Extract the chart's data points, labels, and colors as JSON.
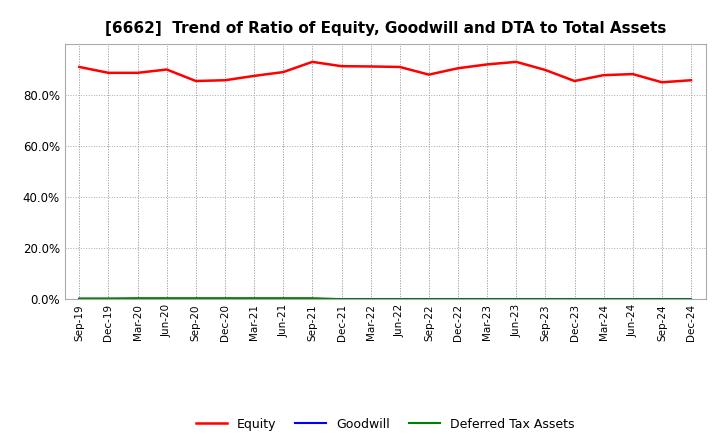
{
  "title": "[6662]  Trend of Ratio of Equity, Goodwill and DTA to Total Assets",
  "labels": [
    "Sep-19",
    "Dec-19",
    "Mar-20",
    "Jun-20",
    "Sep-20",
    "Dec-20",
    "Mar-21",
    "Jun-21",
    "Sep-21",
    "Dec-21",
    "Mar-22",
    "Jun-22",
    "Sep-22",
    "Dec-22",
    "Mar-23",
    "Jun-23",
    "Sep-23",
    "Dec-23",
    "Mar-24",
    "Jun-24",
    "Sep-24",
    "Dec-24"
  ],
  "equity": [
    0.91,
    0.887,
    0.887,
    0.9,
    0.855,
    0.858,
    0.875,
    0.89,
    0.93,
    0.913,
    0.912,
    0.91,
    0.88,
    0.905,
    0.92,
    0.93,
    0.898,
    0.855,
    0.878,
    0.882,
    0.85,
    0.858
  ],
  "goodwill": [
    0.0,
    0.0,
    0.0,
    0.0,
    0.0,
    0.0,
    0.0,
    0.0,
    0.0,
    0.0,
    0.0,
    0.0,
    0.0,
    0.0,
    0.0,
    0.0,
    0.0,
    0.0,
    0.0,
    0.0,
    0.0,
    0.0
  ],
  "dta": [
    0.003,
    0.003,
    0.004,
    0.004,
    0.004,
    0.004,
    0.004,
    0.004,
    0.004,
    0.0,
    0.0,
    0.0,
    0.0,
    0.0,
    0.0,
    0.0,
    0.0,
    0.0,
    0.0,
    0.0,
    0.0,
    0.0
  ],
  "equity_color": "#FF0000",
  "goodwill_color": "#0000FF",
  "dta_color": "#008000",
  "ylim": [
    0.0,
    1.0
  ],
  "yticks": [
    0.0,
    0.2,
    0.4,
    0.6,
    0.8
  ],
  "background_color": "#FFFFFF",
  "plot_bg_color": "#FFFFFF",
  "grid_color": "#AAAAAA",
  "title_fontsize": 11,
  "legend_labels": [
    "Equity",
    "Goodwill",
    "Deferred Tax Assets"
  ]
}
